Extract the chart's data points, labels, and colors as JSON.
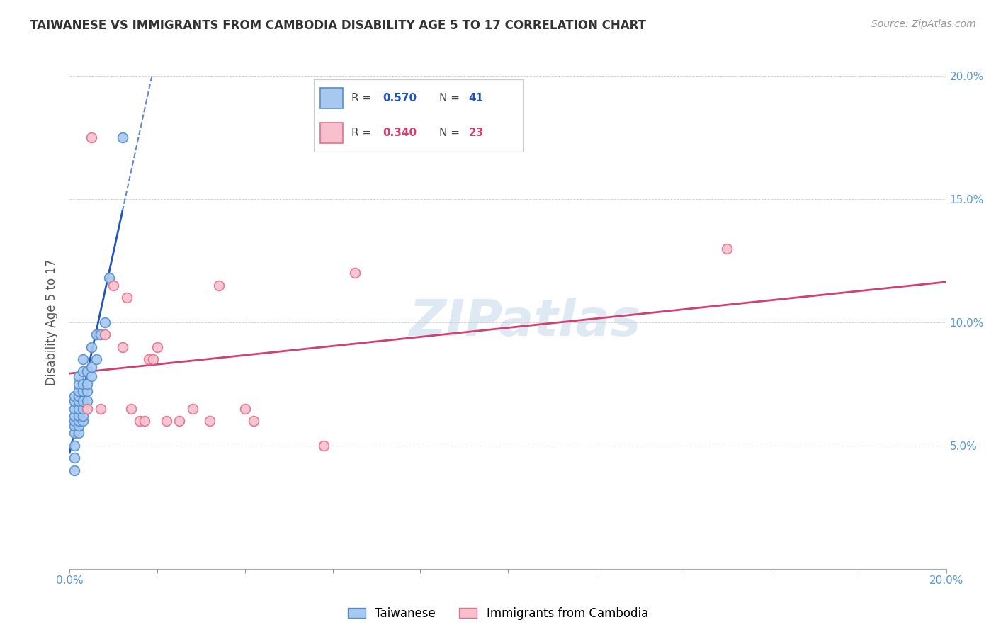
{
  "title": "TAIWANESE VS IMMIGRANTS FROM CAMBODIA DISABILITY AGE 5 TO 17 CORRELATION CHART",
  "source": "Source: ZipAtlas.com",
  "ylabel": "Disability Age 5 to 17",
  "xlim": [
    0.0,
    0.2
  ],
  "ylim": [
    0.0,
    0.2
  ],
  "x_left_label": "0.0%",
  "x_right_label": "20.0%",
  "ytick_vals": [
    0.05,
    0.1,
    0.15,
    0.2
  ],
  "ytick_labels": [
    "5.0%",
    "10.0%",
    "15.0%",
    "20.0%"
  ],
  "watermark": "ZIPatlas",
  "series": [
    {
      "label": "Taiwanese",
      "color": "#a8c8f0",
      "edge_color": "#5090d0",
      "trend_color": "#2255bb",
      "R": 0.57,
      "N": 41,
      "x": [
        0.001,
        0.001,
        0.001,
        0.001,
        0.001,
        0.001,
        0.001,
        0.001,
        0.001,
        0.001,
        0.002,
        0.002,
        0.002,
        0.002,
        0.002,
        0.002,
        0.002,
        0.002,
        0.002,
        0.002,
        0.003,
        0.003,
        0.003,
        0.003,
        0.003,
        0.003,
        0.003,
        0.003,
        0.004,
        0.004,
        0.004,
        0.004,
        0.005,
        0.005,
        0.005,
        0.006,
        0.006,
        0.007,
        0.008,
        0.009,
        0.012
      ],
      "y": [
        0.04,
        0.045,
        0.05,
        0.055,
        0.058,
        0.06,
        0.062,
        0.065,
        0.068,
        0.07,
        0.055,
        0.058,
        0.06,
        0.062,
        0.065,
        0.068,
        0.07,
        0.072,
        0.075,
        0.078,
        0.06,
        0.062,
        0.065,
        0.068,
        0.072,
        0.075,
        0.08,
        0.085,
        0.068,
        0.072,
        0.075,
        0.08,
        0.078,
        0.082,
        0.09,
        0.085,
        0.095,
        0.095,
        0.1,
        0.118,
        0.175
      ]
    },
    {
      "label": "Immigrants from Cambodia",
      "color": "#f8c0cc",
      "edge_color": "#e07090",
      "trend_color": "#d04070",
      "R": 0.34,
      "N": 23,
      "x": [
        0.004,
        0.005,
        0.007,
        0.008,
        0.01,
        0.012,
        0.013,
        0.014,
        0.016,
        0.017,
        0.018,
        0.019,
        0.02,
        0.022,
        0.025,
        0.028,
        0.032,
        0.04,
        0.042,
        0.058,
        0.065,
        0.15,
        0.034
      ],
      "y": [
        0.065,
        0.175,
        0.065,
        0.095,
        0.115,
        0.09,
        0.11,
        0.065,
        0.06,
        0.06,
        0.085,
        0.085,
        0.09,
        0.06,
        0.06,
        0.065,
        0.06,
        0.065,
        0.06,
        0.05,
        0.12,
        0.13,
        0.115
      ]
    }
  ]
}
